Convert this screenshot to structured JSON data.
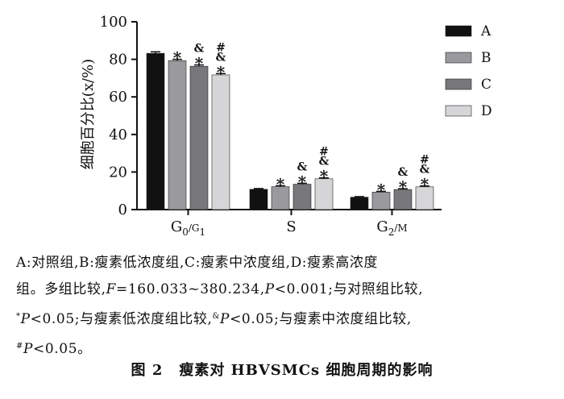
{
  "chart_data": {
    "type": "bar",
    "ylabel": "细胞百分比(x/%)",
    "ylim": [
      0,
      100
    ],
    "y_ticks": [
      "0",
      "20",
      "40",
      "60",
      "80",
      "100"
    ],
    "categories": [
      "G0/G1",
      "S",
      "G2/M"
    ],
    "series": [
      {
        "name": "A",
        "color": "#111111",
        "values": [
          83.2,
          10.8,
          6.6
        ],
        "errors": [
          0.8,
          0.4,
          0.3
        ],
        "marks": [
          "",
          "",
          ""
        ]
      },
      {
        "name": "B",
        "color": "#9a9a9e",
        "values": [
          79.3,
          12.2,
          9.3
        ],
        "errors": [
          0.7,
          0.5,
          0.4
        ],
        "marks": [
          "*",
          "*",
          "*"
        ]
      },
      {
        "name": "C",
        "color": "#78787c",
        "values": [
          76.3,
          13.5,
          10.7
        ],
        "errors": [
          0.7,
          0.5,
          0.4
        ],
        "marks": [
          "&*",
          "&*",
          "&*"
        ]
      },
      {
        "name": "D",
        "color": "#d6d6d8",
        "values": [
          71.7,
          16.4,
          12.1
        ],
        "errors": [
          0.7,
          0.5,
          0.5
        ],
        "marks": [
          "#&*",
          "#&*",
          "#&*"
        ]
      }
    ]
  },
  "note": {
    "line1": "A:对照组,B:瘦素低浓度组,C:瘦素中浓度组,D:瘦素高浓度",
    "line2_pre": "组。多组比较,",
    "f_var": "F",
    "line2_mid": "=160.033~380.234,",
    "p_var": "P",
    "line2_post": "<0.001;与对照组比较,",
    "star": "*",
    "p05": "<0.05",
    "seg_low": ";与瘦素低浓度组比较,",
    "amp": "&",
    "seg_mid": ";与瘦素中浓度组比较,",
    "hash": "#",
    "end": "。"
  },
  "caption": {
    "figure_no": "图 2",
    "title": "瘦素对 HBVSMCs 细胞周期的影响"
  }
}
